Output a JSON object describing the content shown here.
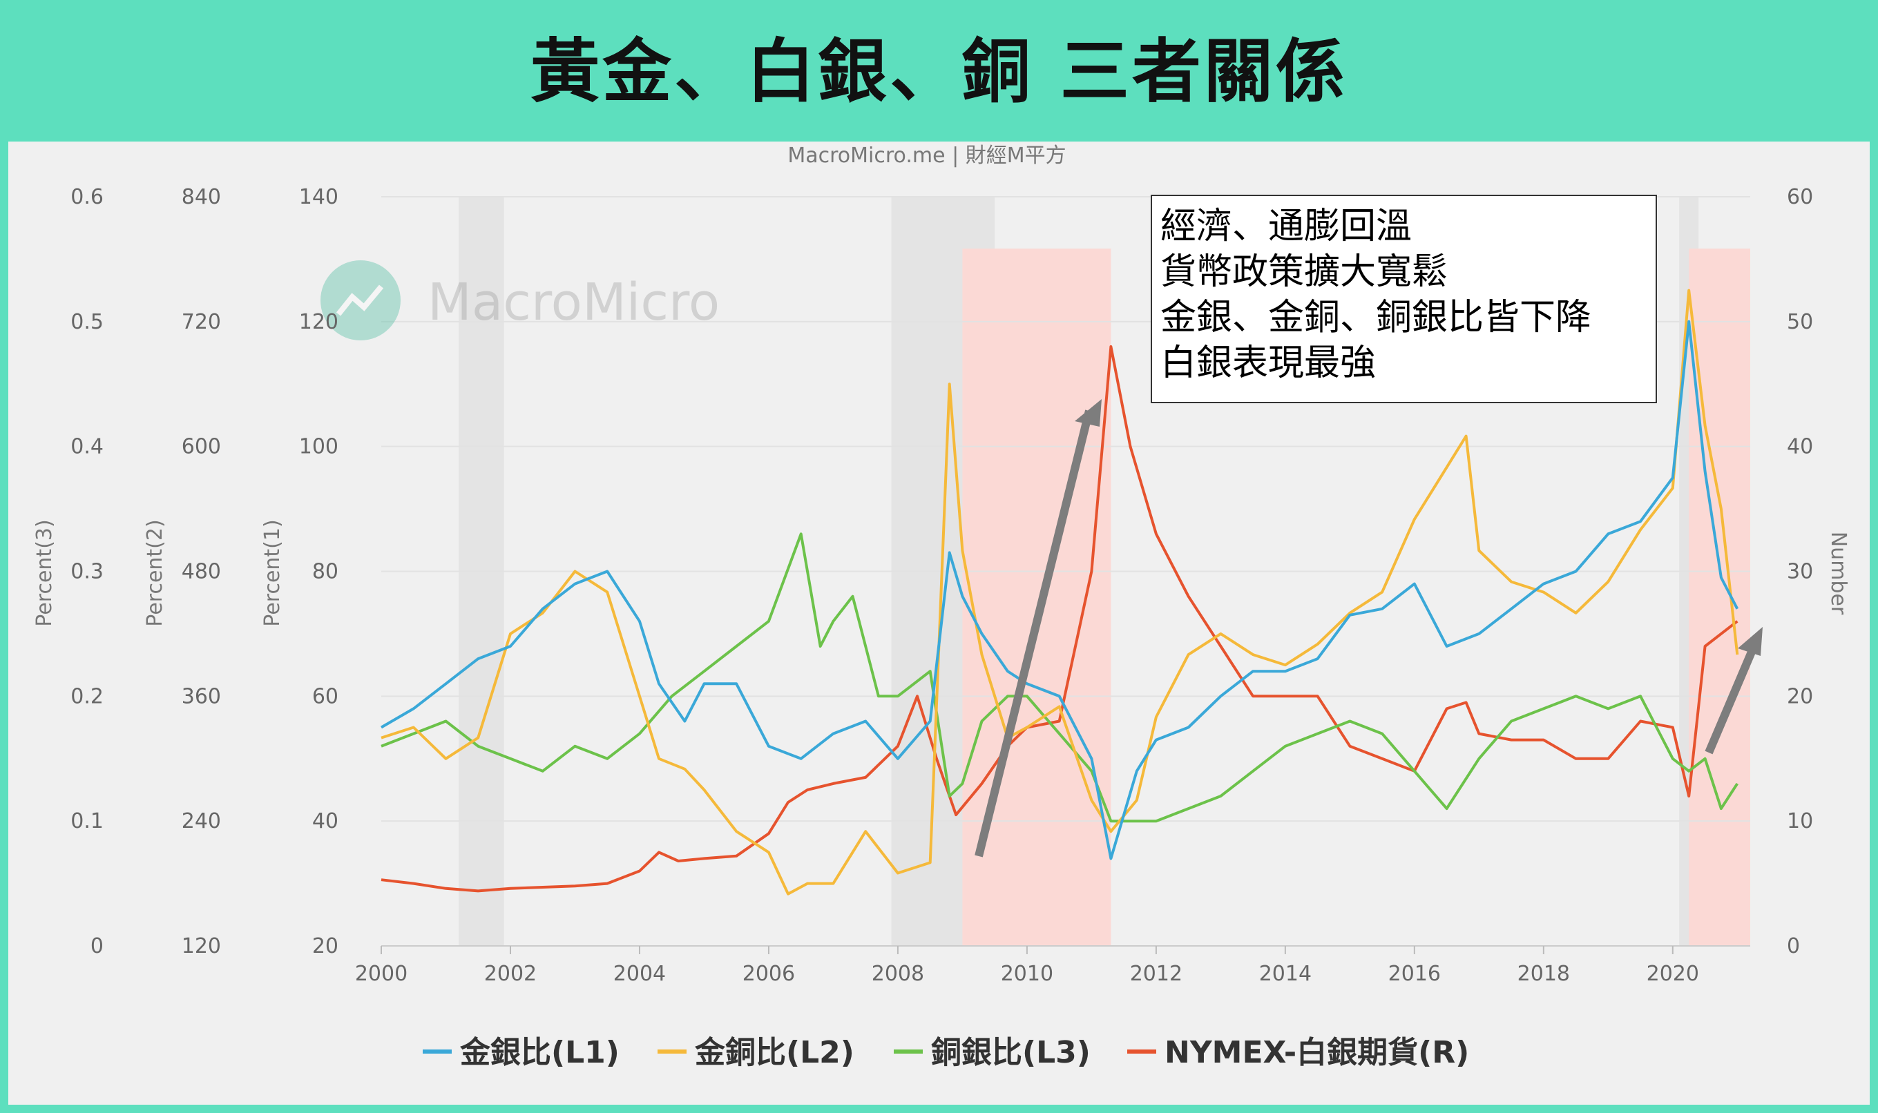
{
  "page_title": "黃金、白銀、銅 三者關係",
  "source_label": "MacroMicro.me | 財經M平方",
  "watermark": "MacroMicro",
  "annotation_lines": [
    "經濟、通膨回溫",
    "貨幣政策擴大寬鬆",
    "金銀、金銅、銅銀比皆下降",
    "白銀表現最強"
  ],
  "colors": {
    "gold_silver": "#3aa8d8",
    "gold_copper": "#f5b93a",
    "copper_silver": "#6cc24a",
    "silver_futures": "#e6532e",
    "highlight": "#fbd9d5",
    "recession": "#e4e4e4",
    "arrow": "#7d7d7d",
    "background": "#5ddfbe"
  },
  "chart_data": {
    "type": "line",
    "source": "MacroMicro.me | 財經M平方",
    "x_ticks": [
      "2000",
      "2002",
      "2004",
      "2006",
      "2008",
      "2010",
      "2012",
      "2014",
      "2016",
      "2018",
      "2020"
    ],
    "xlim": [
      2000,
      2021.2
    ],
    "axes": {
      "L1": {
        "title": "Percent(1)",
        "range": [
          20,
          140
        ],
        "ticks": [
          "20",
          "40",
          "60",
          "80",
          "100",
          "120",
          "140"
        ]
      },
      "L2": {
        "title": "Percent(2)",
        "range": [
          120,
          840
        ],
        "ticks": [
          "120",
          "240",
          "360",
          "480",
          "600",
          "720",
          "840"
        ]
      },
      "L3": {
        "title": "Percent(3)",
        "range": [
          0,
          0.6
        ],
        "ticks": [
          "0",
          "0.1",
          "0.2",
          "0.3",
          "0.4",
          "0.5",
          "0.6"
        ]
      },
      "R": {
        "title": "Number",
        "range": [
          0,
          60
        ],
        "ticks": [
          "0",
          "10",
          "20",
          "30",
          "40",
          "50",
          "60"
        ]
      }
    },
    "highlight_periods": [
      [
        2009.0,
        2011.3
      ],
      [
        2020.25,
        2021.2
      ]
    ],
    "recession_periods": [
      [
        2001.2,
        2001.9
      ],
      [
        2007.9,
        2009.5
      ],
      [
        2020.1,
        2020.4
      ]
    ],
    "series": [
      {
        "name": "金銀比(L1)",
        "axis": "L1",
        "x": [
          2000,
          2000.5,
          2001,
          2001.5,
          2002,
          2002.5,
          2003,
          2003.5,
          2004,
          2004.3,
          2004.7,
          2005,
          2005.5,
          2006,
          2006.5,
          2007,
          2007.5,
          2008,
          2008.5,
          2008.8,
          2009,
          2009.3,
          2009.7,
          2010,
          2010.5,
          2011,
          2011.3,
          2011.7,
          2012,
          2012.5,
          2013,
          2013.5,
          2014,
          2014.5,
          2015,
          2015.5,
          2016,
          2016.5,
          2017,
          2017.5,
          2018,
          2018.5,
          2019,
          2019.5,
          2020,
          2020.25,
          2020.5,
          2020.75,
          2021
        ],
        "y": [
          55,
          58,
          62,
          66,
          68,
          74,
          78,
          80,
          72,
          62,
          56,
          62,
          62,
          52,
          50,
          54,
          56,
          50,
          56,
          83,
          76,
          70,
          64,
          62,
          60,
          50,
          34,
          48,
          53,
          55,
          60,
          64,
          64,
          66,
          73,
          74,
          78,
          68,
          70,
          74,
          78,
          80,
          86,
          88,
          95,
          120,
          96,
          79,
          74
        ]
      },
      {
        "name": "金銅比(L2)",
        "axis": "L2",
        "x": [
          2000,
          2000.5,
          2001,
          2001.5,
          2002,
          2002.5,
          2003,
          2003.5,
          2004,
          2004.3,
          2004.7,
          2005,
          2005.5,
          2006,
          2006.3,
          2006.6,
          2007,
          2007.5,
          2008,
          2008.5,
          2008.8,
          2009,
          2009.3,
          2009.7,
          2010,
          2010.5,
          2011,
          2011.3,
          2011.7,
          2012,
          2012.5,
          2013,
          2013.5,
          2014,
          2014.5,
          2015,
          2015.5,
          2016,
          2016.5,
          2016.8,
          2017,
          2017.5,
          2018,
          2018.5,
          2019,
          2019.5,
          2020,
          2020.25,
          2020.5,
          2020.75,
          2021
        ],
        "y": [
          320,
          330,
          300,
          320,
          420,
          440,
          480,
          460,
          360,
          300,
          290,
          270,
          230,
          210,
          170,
          180,
          180,
          230,
          190,
          200,
          660,
          500,
          400,
          320,
          330,
          350,
          260,
          230,
          260,
          340,
          400,
          420,
          400,
          390,
          410,
          440,
          460,
          530,
          580,
          610,
          500,
          470,
          460,
          440,
          470,
          520,
          560,
          750,
          620,
          540,
          400
        ]
      },
      {
        "name": "銅銀比(L3)",
        "axis": "L3",
        "x": [
          2000,
          2000.5,
          2001,
          2001.5,
          2002,
          2002.5,
          2003,
          2003.5,
          2004,
          2004.5,
          2005,
          2005.5,
          2006,
          2006.5,
          2006.8,
          2007,
          2007.3,
          2007.7,
          2008,
          2008.5,
          2008.8,
          2009,
          2009.3,
          2009.7,
          2010,
          2010.5,
          2011,
          2011.3,
          2011.7,
          2012,
          2012.5,
          2013,
          2013.5,
          2014,
          2014.5,
          2015,
          2015.5,
          2016,
          2016.5,
          2017,
          2017.5,
          2018,
          2018.5,
          2019,
          2019.5,
          2020,
          2020.25,
          2020.5,
          2020.75,
          2021
        ],
        "y": [
          0.16,
          0.17,
          0.18,
          0.16,
          0.15,
          0.14,
          0.16,
          0.15,
          0.17,
          0.2,
          0.22,
          0.24,
          0.26,
          0.33,
          0.24,
          0.26,
          0.28,
          0.2,
          0.2,
          0.22,
          0.12,
          0.13,
          0.18,
          0.2,
          0.2,
          0.17,
          0.14,
          0.1,
          0.1,
          0.1,
          0.11,
          0.12,
          0.14,
          0.16,
          0.17,
          0.18,
          0.17,
          0.14,
          0.11,
          0.15,
          0.18,
          0.19,
          0.2,
          0.19,
          0.2,
          0.15,
          0.14,
          0.15,
          0.11,
          0.13
        ]
      },
      {
        "name": "NYMEX-白銀期貨(R)",
        "axis": "R",
        "x": [
          2000,
          2000.5,
          2001,
          2001.5,
          2002,
          2002.5,
          2003,
          2003.5,
          2004,
          2004.3,
          2004.6,
          2005,
          2005.5,
          2006,
          2006.3,
          2006.6,
          2007,
          2007.5,
          2008,
          2008.3,
          2008.6,
          2008.9,
          2009.3,
          2009.7,
          2010,
          2010.5,
          2011,
          2011.3,
          2011.6,
          2012,
          2012.5,
          2013,
          2013.5,
          2014,
          2014.5,
          2015,
          2015.5,
          2016,
          2016.5,
          2016.8,
          2017,
          2017.5,
          2018,
          2018.5,
          2019,
          2019.5,
          2020,
          2020.25,
          2020.5,
          2020.75,
          2021
        ],
        "y": [
          5.3,
          5.0,
          4.6,
          4.4,
          4.6,
          4.7,
          4.8,
          5.0,
          6.0,
          7.5,
          6.8,
          7.0,
          7.2,
          9.0,
          11.5,
          12.5,
          13.0,
          13.5,
          16.0,
          20.0,
          15.0,
          10.5,
          13.0,
          16.0,
          17.5,
          18.0,
          30.0,
          48.0,
          40.0,
          33.0,
          28.0,
          24.0,
          20.0,
          20.0,
          20.0,
          16.0,
          15.0,
          14.0,
          19.0,
          19.5,
          17.0,
          16.5,
          16.5,
          15.0,
          15.0,
          18.0,
          17.5,
          12.0,
          24.0,
          25.0,
          26.0
        ]
      }
    ]
  }
}
